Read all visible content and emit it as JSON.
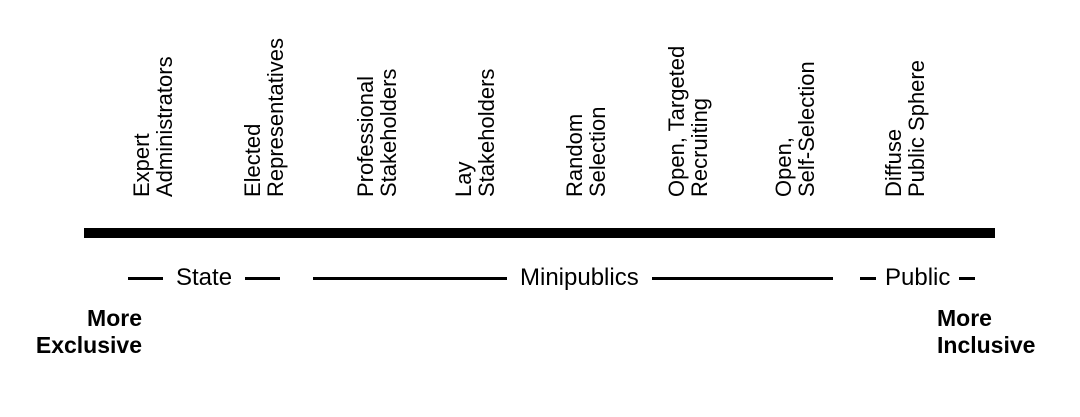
{
  "colors": {
    "ink": "#000000",
    "background": "#ffffff"
  },
  "spectrum": {
    "methods": [
      "Expert\nAdministrators",
      "Elected\nRepresentatives",
      "Professional\nStakeholders",
      "Lay\nStakeholders",
      "Random\nSelection",
      "Open, Targeted\nRecruiting",
      "Open,\nSelf-Selection",
      "Diffuse\nPublic Sphere"
    ],
    "groups": [
      {
        "label": "State"
      },
      {
        "label": "Minipublics"
      },
      {
        "label": "Public"
      }
    ],
    "poles": {
      "left": "More\nExclusive",
      "right": "More\nInclusive"
    }
  }
}
